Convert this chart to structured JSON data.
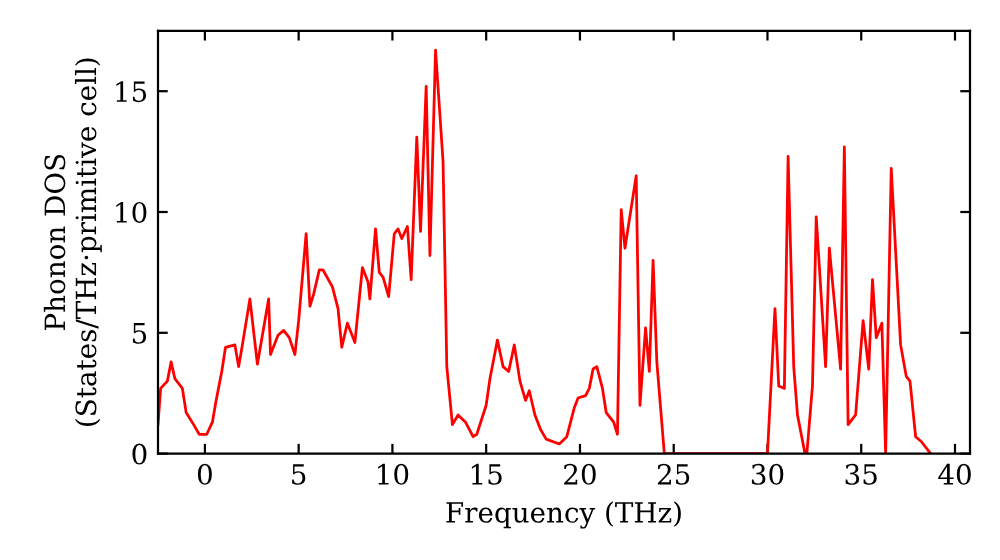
{
  "chart_data": {
    "type": "line",
    "xlabel": "Frequency (THz)",
    "ylabel": "Phonon DOS\n(States/THz·primitive cell)",
    "xlim": [
      -2.5,
      40.8
    ],
    "ylim": [
      0,
      17.5
    ],
    "xticks": [
      0,
      5,
      10,
      15,
      20,
      25,
      30,
      35,
      40
    ],
    "yticks": [
      0,
      5,
      10,
      15
    ],
    "grid": false,
    "marker": "none",
    "line_style": "solid",
    "series": [
      {
        "color": "#ff0000",
        "x": [
          -2.5,
          -2.36,
          -2.0,
          -1.8,
          -1.6,
          -1.2,
          -1.0,
          -0.6,
          -0.3,
          0.1,
          0.4,
          0.6,
          0.9,
          1.1,
          1.6,
          1.8,
          2.0,
          2.4,
          2.8,
          3.4,
          3.5,
          3.9,
          4.2,
          4.5,
          4.8,
          5.0,
          5.4,
          5.6,
          5.8,
          6.1,
          6.3,
          6.8,
          7.1,
          7.3,
          7.6,
          8.0,
          8.4,
          8.7,
          8.8,
          9.1,
          9.3,
          9.5,
          9.8,
          10.1,
          10.3,
          10.5,
          10.8,
          11.0,
          11.3,
          11.5,
          11.8,
          12.0,
          12.3,
          12.7,
          12.9,
          13.2,
          13.5,
          13.9,
          14.3,
          14.5,
          15.0,
          15.2,
          15.6,
          15.9,
          16.2,
          16.5,
          16.8,
          17.1,
          17.3,
          17.6,
          17.9,
          18.2,
          18.9,
          19.3,
          19.7,
          19.9,
          20.3,
          20.5,
          20.7,
          20.9,
          21.2,
          21.4,
          21.8,
          22.0,
          22.2,
          22.4,
          23.0,
          23.2,
          23.5,
          23.7,
          23.9,
          24.1,
          24.5,
          30.0,
          30.4,
          30.6,
          30.9,
          31.1,
          31.4,
          31.6,
          32.0,
          32.1,
          32.4,
          32.6,
          33.1,
          33.3,
          33.9,
          34.1,
          34.3,
          34.7,
          35.1,
          35.4,
          35.6,
          35.8,
          36.1,
          36.3,
          36.6,
          37.1,
          37.4,
          37.6,
          37.9,
          38.2,
          38.7
        ],
        "values": [
          1.2,
          2.7,
          3.0,
          3.8,
          3.1,
          2.7,
          1.7,
          1.2,
          0.8,
          0.8,
          1.3,
          2.2,
          3.4,
          4.4,
          4.5,
          3.6,
          4.5,
          6.4,
          3.7,
          6.4,
          4.1,
          4.9,
          5.1,
          4.8,
          4.1,
          5.5,
          9.1,
          6.1,
          6.6,
          7.6,
          7.6,
          6.9,
          6.0,
          4.4,
          5.4,
          4.6,
          7.7,
          7.1,
          6.4,
          9.3,
          7.5,
          7.3,
          6.5,
          9.1,
          9.3,
          8.9,
          9.4,
          7.2,
          13.1,
          9.2,
          15.2,
          8.2,
          16.7,
          12.1,
          3.6,
          1.2,
          1.6,
          1.3,
          0.7,
          0.8,
          2.0,
          3.1,
          4.7,
          3.6,
          3.4,
          4.5,
          3.0,
          2.2,
          2.6,
          1.6,
          1.0,
          0.6,
          0.4,
          0.7,
          1.9,
          2.3,
          2.4,
          2.7,
          3.5,
          3.6,
          2.7,
          1.7,
          1.3,
          0.8,
          10.1,
          8.5,
          11.5,
          2.0,
          5.2,
          3.4,
          8.0,
          3.8,
          0,
          0,
          6.0,
          2.8,
          2.7,
          12.3,
          3.6,
          1.6,
          0,
          0,
          2.8,
          9.8,
          3.6,
          8.5,
          3.5,
          12.7,
          1.2,
          1.6,
          5.5,
          3.5,
          7.2,
          4.8,
          5.4,
          0,
          11.8,
          4.5,
          3.2,
          3.0,
          0.7,
          0.5,
          0
        ]
      }
    ]
  }
}
